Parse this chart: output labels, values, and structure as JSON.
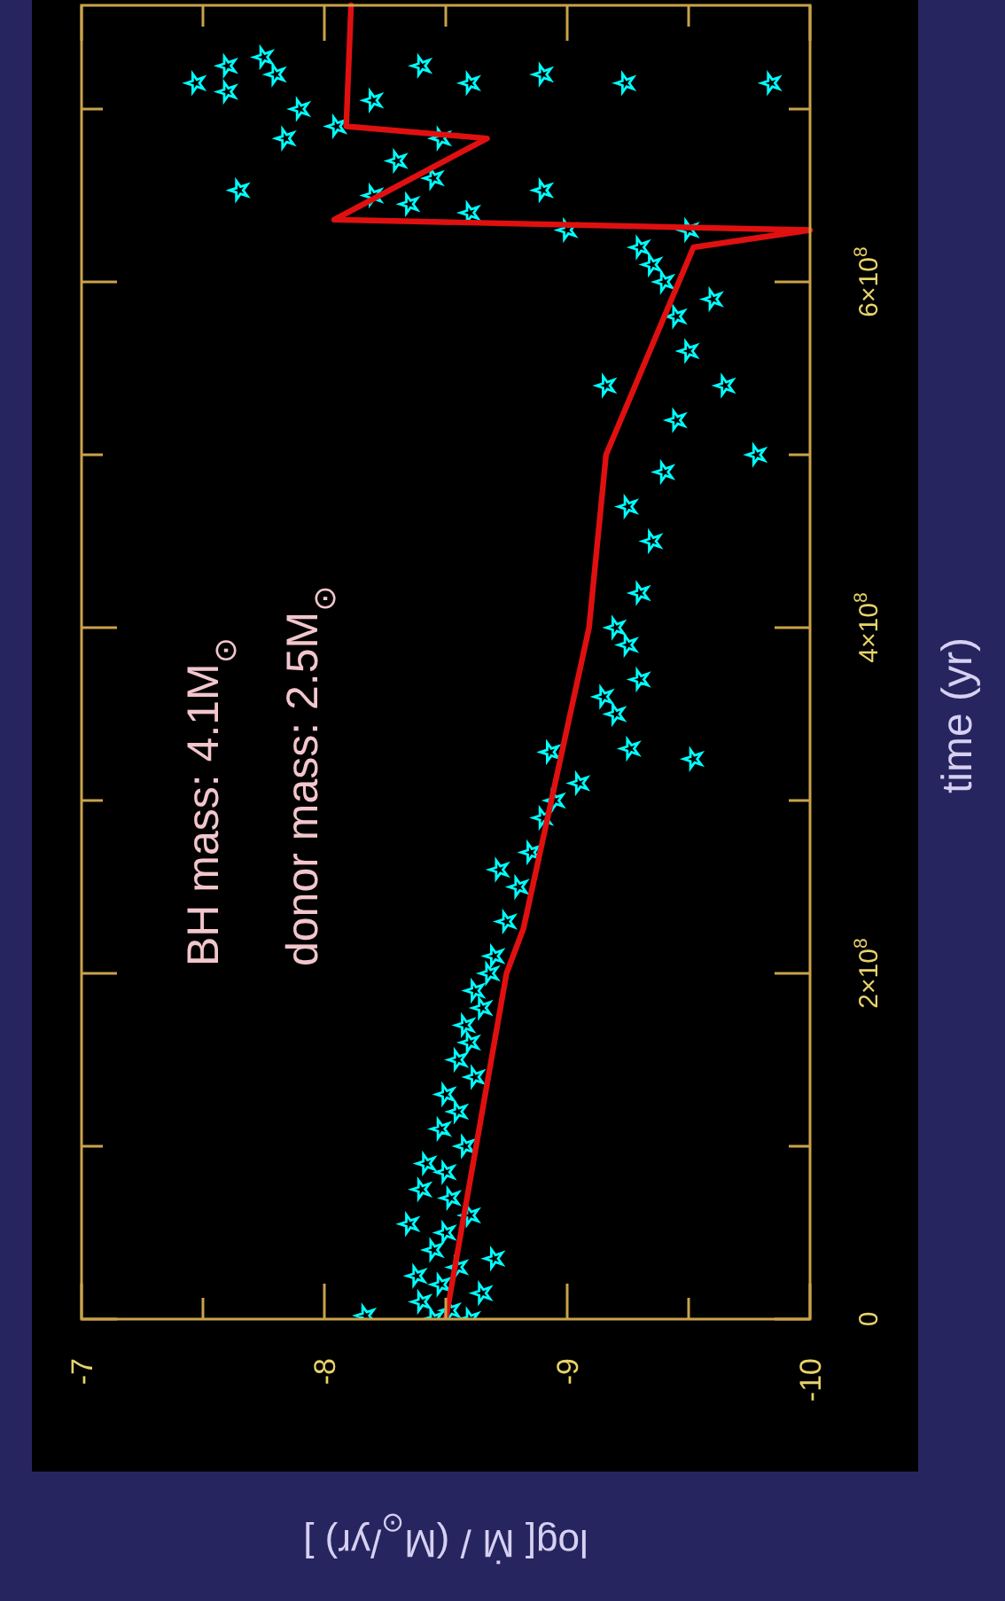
{
  "chart_data": {
    "type": "scatter",
    "xlabel": "log[ Ṁ / (M$_{⊙}$/yr) ]",
    "ylabel": "time (yr)",
    "annotations": [
      "BH mass: 4.1M$_{⊙}$",
      "donor mass: 2.5M$_{⊙}$"
    ],
    "xlim": [
      -7,
      -10
    ],
    "ylim": [
      0,
      760000000
    ],
    "xticks": [
      -7,
      {
        "value": -7.5,
        "label": null
      },
      -8,
      {
        "value": -8.5,
        "label": null
      },
      -9,
      {
        "value": -9.5,
        "label": null
      },
      -10
    ],
    "yticks": [
      0,
      {
        "value": 100000000,
        "label": null
      },
      {
        "value": 200000000,
        "label": "2×10$^{8}$"
      },
      {
        "value": 300000000,
        "label": null
      },
      {
        "value": 400000000,
        "label": "4×10$^{8}$"
      },
      {
        "value": 500000000,
        "label": null
      },
      {
        "value": 600000000,
        "label": "6×10$^{8}$"
      },
      {
        "value": 700000000,
        "label": null
      }
    ],
    "series": [
      {
        "color": "#00ffff",
        "marker": "star",
        "values": [
          0,
          0,
          2000000,
          5000000,
          10000000,
          15000000,
          20000000,
          25000000,
          30000000,
          35000000,
          40000000,
          50000000,
          55000000,
          60000000,
          70000000,
          75000000,
          85000000,
          90000000,
          100000000,
          110000000,
          120000000,
          130000000,
          140000000,
          150000000,
          160000000,
          170000000,
          180000000,
          190000000,
          200000000,
          210000000,
          230000000,
          250000000,
          260000000,
          270000000,
          290000000,
          300000000,
          310000000,
          324000000,
          328000000,
          330000000,
          350000000,
          360000000,
          370000000,
          390000000,
          400000000,
          420000000,
          450000000,
          470000000,
          490000000,
          500000000,
          520000000,
          540000000,
          540000000,
          560000000,
          580000000,
          590000000,
          600000000,
          610000000,
          620000000,
          630000000,
          630000000,
          640000000,
          645000000,
          650000000,
          653000000,
          653000000,
          660000000,
          670000000,
          683000000,
          683000000,
          690000000,
          700000000,
          705000000,
          710000000,
          715000000,
          715000000,
          715000000,
          720000000,
          720000000,
          725000000,
          725000000,
          730000000,
          715000000
        ],
        "x": [
          -8.45,
          -8.6,
          -8.17,
          -8.52,
          -8.4,
          -8.65,
          -8.48,
          -8.38,
          -8.55,
          -8.7,
          -8.45,
          -8.5,
          -8.35,
          -8.6,
          -8.52,
          -8.4,
          -8.5,
          -8.42,
          -8.58,
          -8.48,
          -8.55,
          -8.5,
          -8.62,
          -8.55,
          -8.6,
          -8.58,
          -8.65,
          -8.62,
          -8.68,
          -8.7,
          -8.75,
          -8.8,
          -8.72,
          -8.85,
          -8.9,
          -8.95,
          -9.05,
          -9.52,
          -8.93,
          -9.26,
          -9.2,
          -9.15,
          -9.3,
          -9.25,
          -9.2,
          -9.3,
          -9.35,
          -9.25,
          -9.4,
          -9.78,
          -9.45,
          -9.16,
          -9.65,
          -9.5,
          -9.45,
          -9.6,
          -9.4,
          -9.35,
          -9.3,
          -9.0,
          -9.5,
          -8.6,
          -8.35,
          -8.2,
          -7.65,
          -8.9,
          -8.45,
          -8.3,
          -7.84,
          -8.48,
          -8.05,
          -7.9,
          -8.2,
          -7.6,
          -7.47,
          -8.6,
          -9.24,
          -7.8,
          -8.9,
          -7.6,
          -8.4,
          -7.75,
          -9.84
        ]
      },
      {
        "type": "line",
        "color": "#e01010",
        "marker": "none",
        "x": [
          -8.5,
          -8.75,
          -8.82,
          -9.09,
          -9.16,
          -9.52,
          -10,
          -8.04,
          -8.67,
          -8.09,
          -8.11
        ],
        "values": [
          0,
          200000000,
          226000000,
          400000000,
          500000000,
          620000000,
          630000000,
          636000000,
          683000000,
          690000000,
          760000000
        ]
      }
    ]
  }
}
